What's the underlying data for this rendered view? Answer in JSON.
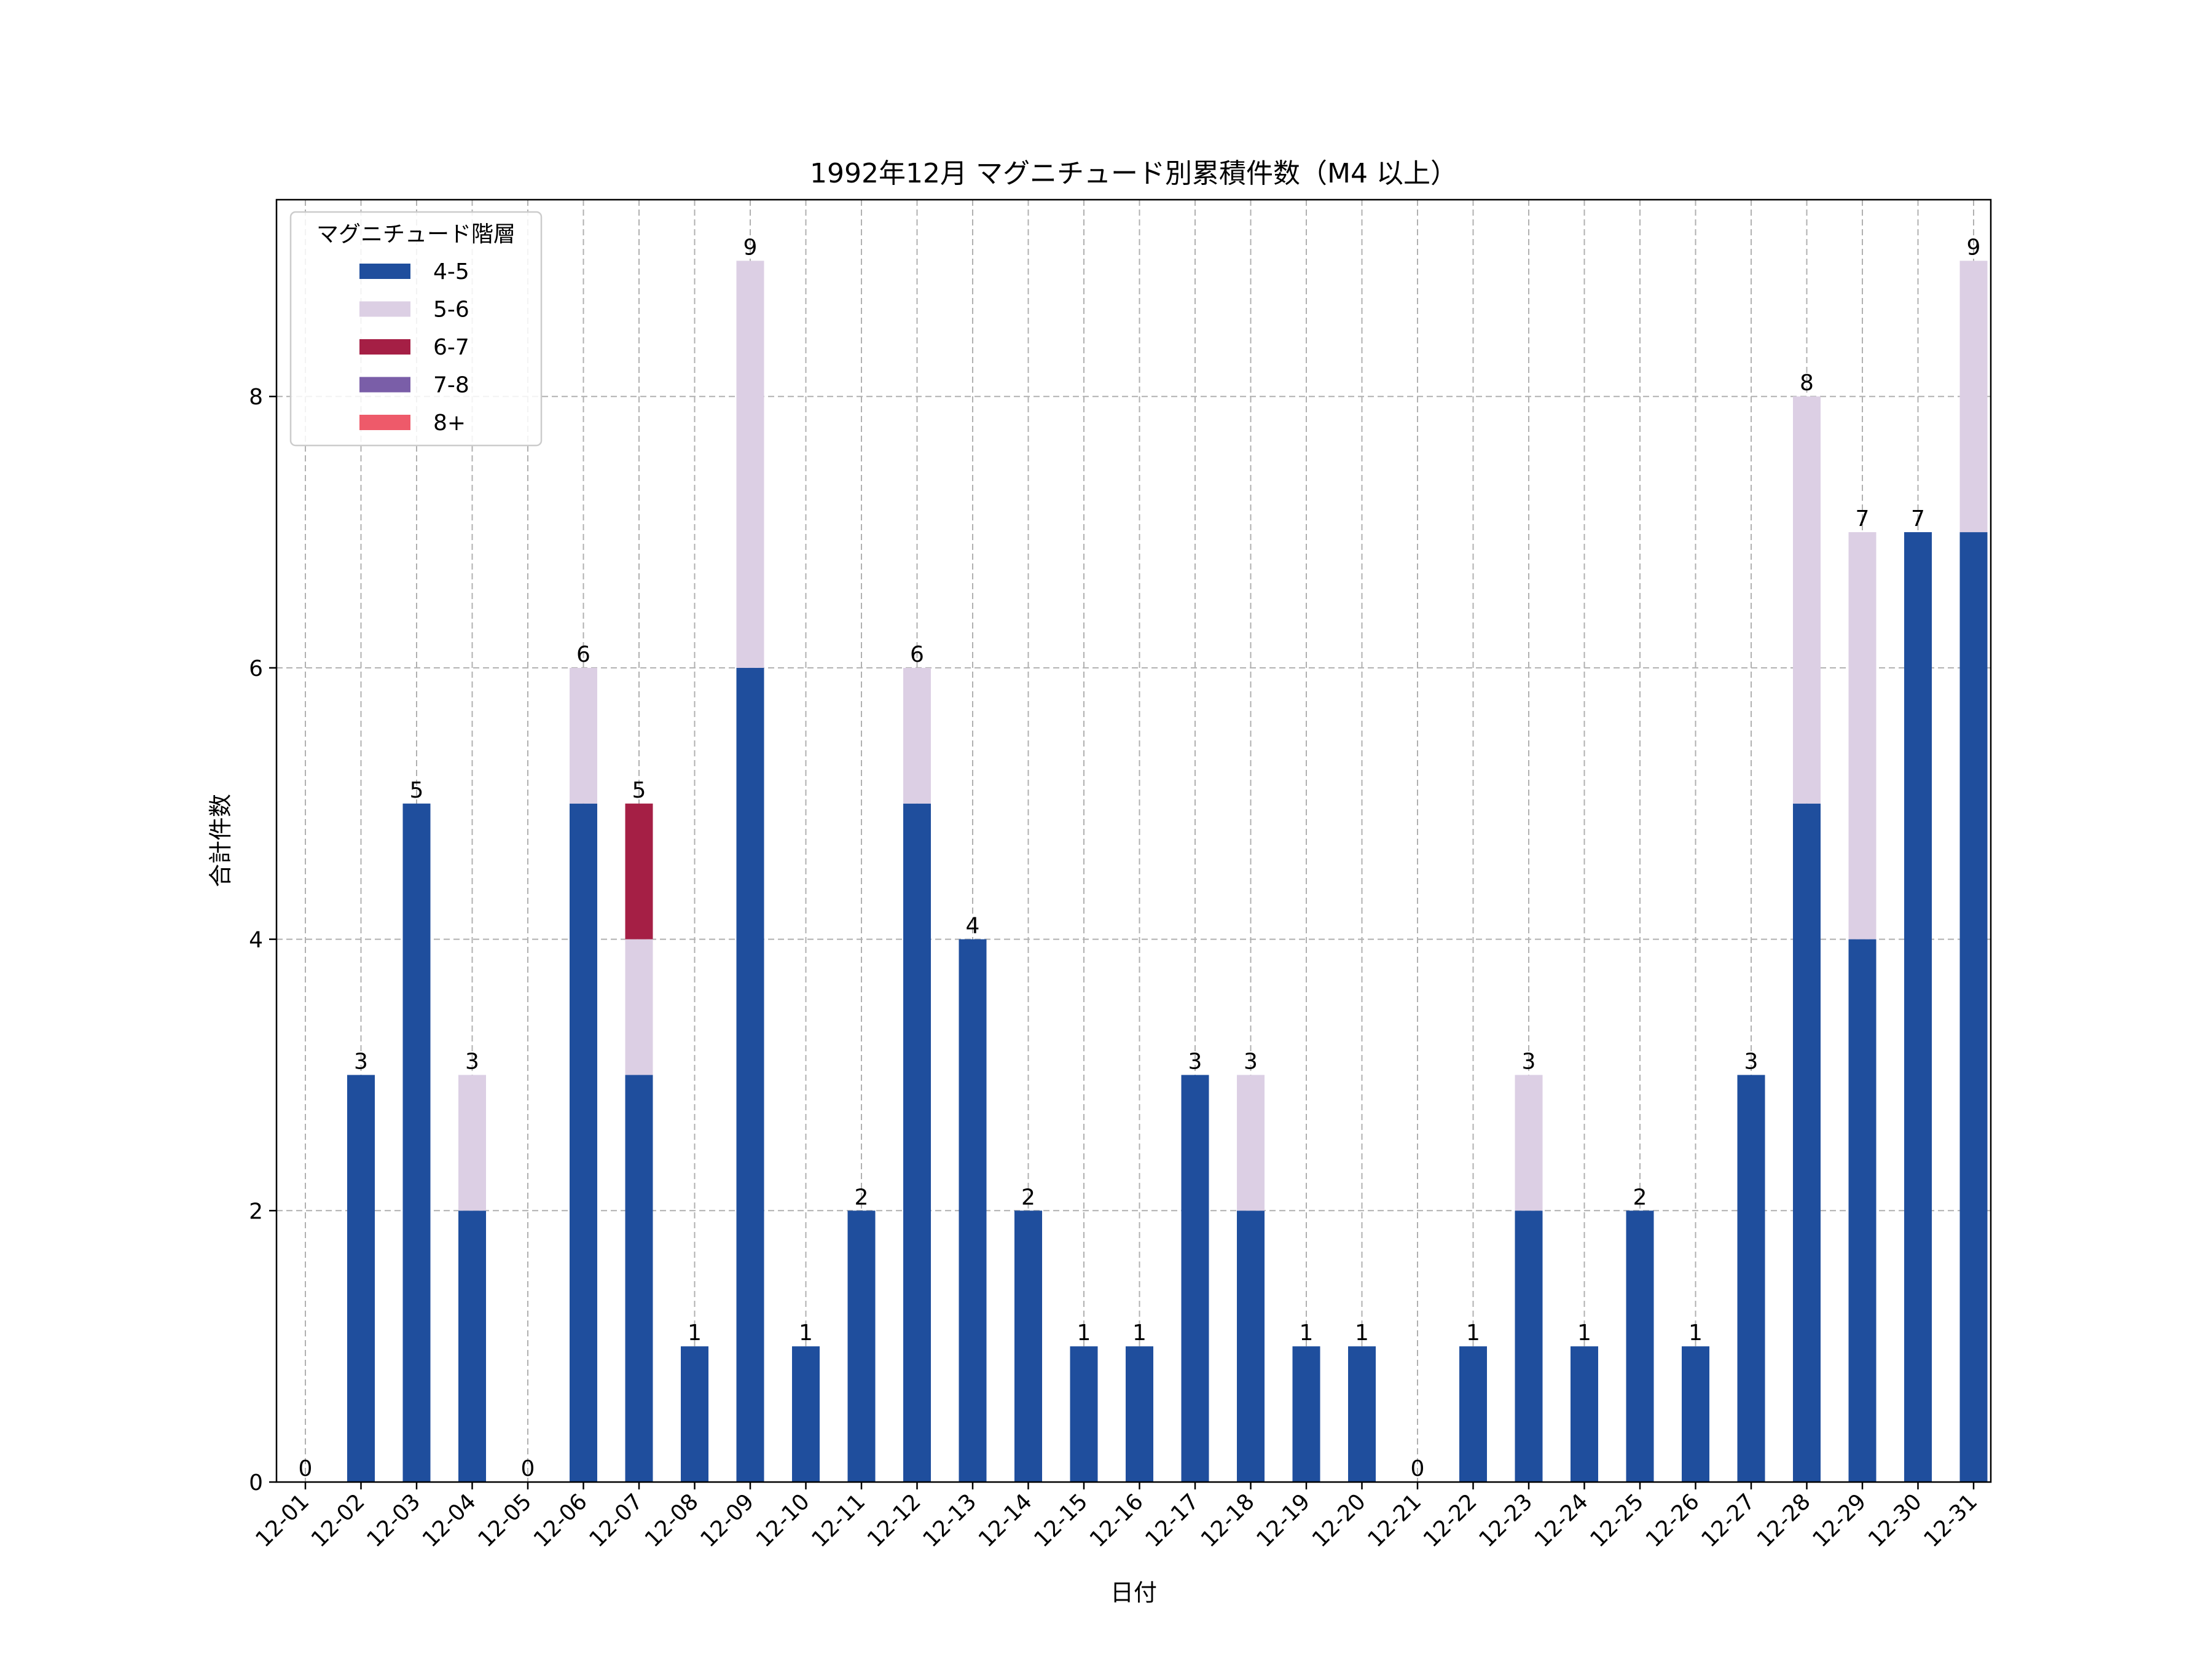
{
  "chart_data": {
    "type": "bar",
    "stacked": true,
    "title": "1992年12月 マグニチュード別累積件数（M4 以上）",
    "xlabel": "日付",
    "ylabel": "合計件数",
    "ylim": [
      0,
      9.45
    ],
    "yticks": [
      0,
      2,
      4,
      6,
      8
    ],
    "grid": true,
    "legend": {
      "title": "マグニチュード階層",
      "placement": "top-left"
    },
    "categories": [
      "12-01",
      "12-02",
      "12-03",
      "12-04",
      "12-05",
      "12-06",
      "12-07",
      "12-08",
      "12-09",
      "12-10",
      "12-11",
      "12-12",
      "12-13",
      "12-14",
      "12-15",
      "12-16",
      "12-17",
      "12-18",
      "12-19",
      "12-20",
      "12-21",
      "12-22",
      "12-23",
      "12-24",
      "12-25",
      "12-26",
      "12-27",
      "12-28",
      "12-29",
      "12-30",
      "12-31"
    ],
    "series": [
      {
        "name": "4-5",
        "color": "#1f4e9d",
        "values": [
          0,
          3,
          5,
          2,
          0,
          5,
          3,
          1,
          6,
          1,
          2,
          5,
          4,
          2,
          1,
          1,
          3,
          2,
          1,
          1,
          0,
          1,
          2,
          1,
          2,
          1,
          3,
          5,
          4,
          7,
          7
        ]
      },
      {
        "name": "5-6",
        "color": "#dccfe4",
        "values": [
          0,
          0,
          0,
          1,
          0,
          1,
          1,
          0,
          3,
          0,
          0,
          1,
          0,
          0,
          0,
          0,
          0,
          1,
          0,
          0,
          0,
          0,
          1,
          0,
          0,
          0,
          0,
          3,
          3,
          0,
          2
        ]
      },
      {
        "name": "6-7",
        "color": "#a51f45",
        "values": [
          0,
          0,
          0,
          0,
          0,
          0,
          1,
          0,
          0,
          0,
          0,
          0,
          0,
          0,
          0,
          0,
          0,
          0,
          0,
          0,
          0,
          0,
          0,
          0,
          0,
          0,
          0,
          0,
          0,
          0,
          0
        ]
      },
      {
        "name": "7-8",
        "color": "#7a5ea8",
        "values": [
          0,
          0,
          0,
          0,
          0,
          0,
          0,
          0,
          0,
          0,
          0,
          0,
          0,
          0,
          0,
          0,
          0,
          0,
          0,
          0,
          0,
          0,
          0,
          0,
          0,
          0,
          0,
          0,
          0,
          0,
          0
        ]
      },
      {
        "name": "8+",
        "color": "#ee5a6a",
        "values": [
          0,
          0,
          0,
          0,
          0,
          0,
          0,
          0,
          0,
          0,
          0,
          0,
          0,
          0,
          0,
          0,
          0,
          0,
          0,
          0,
          0,
          0,
          0,
          0,
          0,
          0,
          0,
          0,
          0,
          0,
          0
        ]
      }
    ],
    "totals": [
      0,
      3,
      5,
      3,
      0,
      6,
      5,
      1,
      9,
      1,
      2,
      6,
      4,
      2,
      1,
      1,
      3,
      3,
      1,
      1,
      0,
      1,
      3,
      1,
      2,
      1,
      3,
      8,
      7,
      7,
      9
    ]
  }
}
